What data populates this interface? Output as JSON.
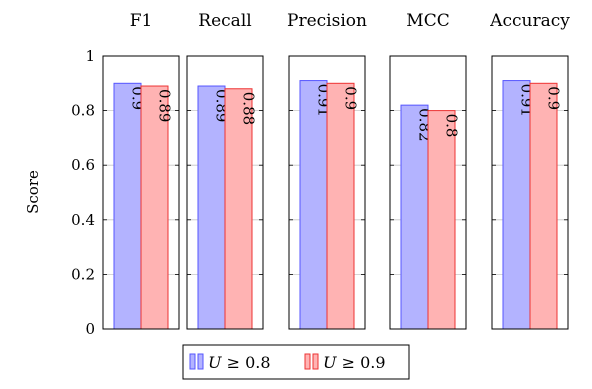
{
  "chart_data": {
    "type": "bar",
    "panels": [
      "F1",
      "Recall",
      "Precision",
      "MCC",
      "Accuracy"
    ],
    "series": [
      {
        "name": "U ≥ 0.8",
        "values": [
          0.9,
          0.89,
          0.91,
          0.82,
          0.91
        ],
        "color": "#5555ff",
        "fill": "#b3b3ff"
      },
      {
        "name": "U ≥ 0.9",
        "values": [
          0.89,
          0.88,
          0.9,
          0.8,
          0.9
        ],
        "color": "#ee3333",
        "fill": "#ffb3b3"
      }
    ],
    "ylabel": "Score",
    "ylim": [
      0,
      1
    ],
    "yticks": [
      0,
      0.2,
      0.4,
      0.6,
      0.8,
      1
    ],
    "ytick_labels": [
      "0",
      "0.2",
      "0.4",
      "0.6",
      "0.8",
      "1"
    ],
    "grid": true,
    "legend_position": "bottom-center",
    "data_labels": "vertical-inside-top"
  },
  "legend": {
    "items": [
      {
        "prefix": "U",
        "relation": "≥",
        "threshold": "0.8"
      },
      {
        "prefix": "U",
        "relation": "≥",
        "threshold": "0.9"
      }
    ]
  }
}
